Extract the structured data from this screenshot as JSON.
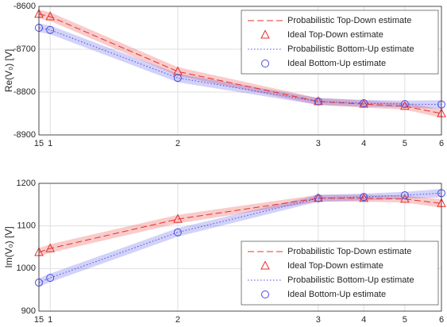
{
  "chart_data": [
    {
      "type": "line",
      "ylabel": "Re(V₀) [V]",
      "x": [
        0,
        0.28,
        3.45,
        6.94,
        8.07,
        9.09,
        10
      ],
      "xlim": [
        0,
        10
      ],
      "xticks": [
        {
          "value": 0,
          "label": "15"
        },
        {
          "value": 0.28,
          "label": "1"
        },
        {
          "value": 3.45,
          "label": "2"
        },
        {
          "value": 6.94,
          "label": "3"
        },
        {
          "value": 8.07,
          "label": "4"
        },
        {
          "value": 9.09,
          "label": "5"
        },
        {
          "value": 10,
          "label": "6"
        }
      ],
      "ylim": [
        -8900,
        -8600
      ],
      "yticks": [
        -8900,
        -8800,
        -8700,
        -8600
      ],
      "grid": true,
      "legend": "upper right",
      "series": [
        {
          "name": "Probabilistic Top-Down estimate",
          "color": "#e8302c",
          "style": "dashed",
          "values": [
            -8618,
            -8624,
            -8752,
            -8822,
            -8828,
            -8833,
            -8850
          ],
          "errors": [
            10,
            10,
            10,
            8,
            8,
            8,
            10
          ]
        },
        {
          "name": "Ideal Top-Down estimate",
          "color": "#e8302c",
          "marker": "triangle",
          "values": [
            -8618,
            -8624,
            -8752,
            -8822,
            -8828,
            -8833,
            -8850
          ]
        },
        {
          "name": "Probabilistic Bottom-Up estimate",
          "color": "#4a4ae8",
          "style": "dotted",
          "values": [
            -8650,
            -8655,
            -8767,
            -8822,
            -8826,
            -8828,
            -8829
          ],
          "errors": [
            10,
            10,
            10,
            8,
            8,
            8,
            10
          ]
        },
        {
          "name": "Ideal Bottom-Up estimate",
          "color": "#4a4ae8",
          "marker": "circle",
          "values": [
            -8650,
            -8655,
            -8767,
            -8822,
            -8826,
            -8828,
            -8829
          ]
        }
      ]
    },
    {
      "type": "line",
      "ylabel": "Im(V₀) [V]",
      "x": [
        0,
        0.28,
        3.45,
        6.94,
        8.07,
        9.09,
        10
      ],
      "xlim": [
        0,
        10
      ],
      "xticks": [
        {
          "value": 0,
          "label": "15"
        },
        {
          "value": 0.28,
          "label": "1"
        },
        {
          "value": 3.45,
          "label": "2"
        },
        {
          "value": 6.94,
          "label": "3"
        },
        {
          "value": 8.07,
          "label": "4"
        },
        {
          "value": 9.09,
          "label": "5"
        },
        {
          "value": 10,
          "label": "6"
        }
      ],
      "ylim": [
        900,
        1200
      ],
      "yticks": [
        900,
        1000,
        1100,
        1200
      ],
      "grid": true,
      "legend": "lower right",
      "series": [
        {
          "name": "Probabilistic Top-Down estimate",
          "color": "#e8302c",
          "style": "dashed",
          "values": [
            1038,
            1047,
            1116,
            1165,
            1165,
            1163,
            1153
          ],
          "errors": [
            10,
            10,
            10,
            8,
            8,
            8,
            10
          ]
        },
        {
          "name": "Ideal Top-Down estimate",
          "color": "#e8302c",
          "marker": "triangle",
          "values": [
            1038,
            1047,
            1116,
            1165,
            1165,
            1163,
            1153
          ]
        },
        {
          "name": "Probabilistic Bottom-Up estimate",
          "color": "#4a4ae8",
          "style": "dotted",
          "values": [
            967,
            978,
            1085,
            1165,
            1168,
            1172,
            1177
          ],
          "errors": [
            10,
            10,
            10,
            8,
            8,
            8,
            10
          ]
        },
        {
          "name": "Ideal Bottom-Up estimate",
          "color": "#4a4ae8",
          "marker": "circle",
          "values": [
            967,
            978,
            1085,
            1165,
            1168,
            1172,
            1177
          ]
        }
      ]
    }
  ]
}
